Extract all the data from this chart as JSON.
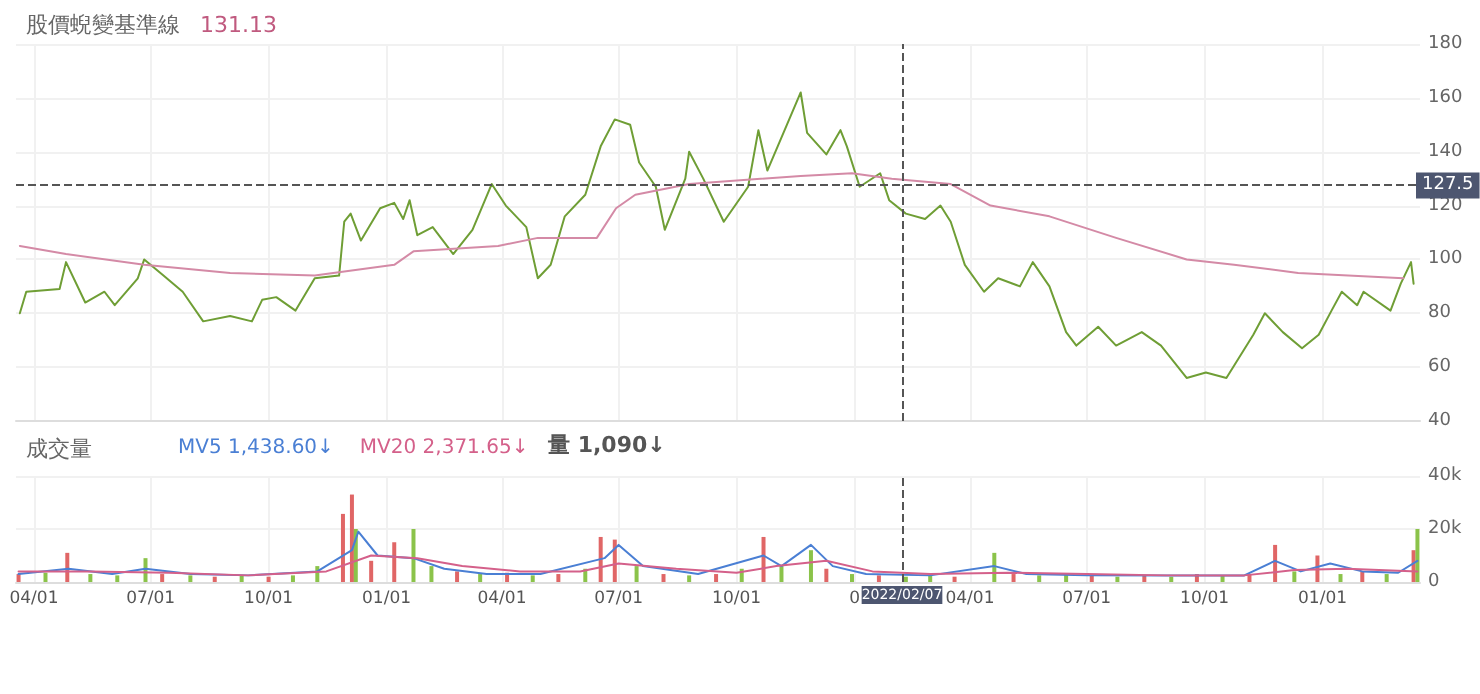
{
  "chart_data": [
    {
      "type": "line",
      "title": "股價蜺變基準線",
      "subtitle": "131.13",
      "tick_labels": "y",
      "grid": true,
      "marker": "none",
      "xlim": [
        "2020-03-18",
        "2023-03-18"
      ],
      "xticks": [
        {
          "value": "2020-04-01",
          "label": null
        },
        {
          "value": "2020-07-01",
          "label": null
        },
        {
          "value": "2020-10-01",
          "label": null
        },
        {
          "value": "2021-01-01",
          "label": null
        },
        {
          "value": "2021-04-01",
          "label": null
        },
        {
          "value": "2021-07-01",
          "label": null
        },
        {
          "value": "2021-10-01",
          "label": null
        },
        {
          "value": "2022-01-01",
          "label": null
        },
        {
          "value": "2022-04-01",
          "label": null
        },
        {
          "value": "2022-07-01",
          "label": null
        },
        {
          "value": "2022-10-01",
          "label": null
        },
        {
          "value": "2023-01-01",
          "label": null
        }
      ],
      "ylim": [
        40,
        180
      ],
      "yticks": [
        40,
        60,
        80,
        100,
        120,
        140,
        160,
        180
      ],
      "series": [
        {
          "color": "#6f9e35",
          "x": [
            "2020-03-21",
            "2020-03-26",
            "2020-04-21",
            "2020-04-26",
            "2020-05-11",
            "2020-05-26",
            "2020-06-03",
            "2020-06-21",
            "2020-06-26",
            "2020-07-11",
            "2020-07-26",
            "2020-08-11",
            "2020-09-01",
            "2020-09-18",
            "2020-09-26",
            "2020-10-07",
            "2020-10-22",
            "2020-11-06",
            "2020-11-25",
            "2020-11-29",
            "2020-12-04",
            "2020-12-12",
            "2020-12-27",
            "2021-01-07",
            "2021-01-14",
            "2021-01-19",
            "2021-01-25",
            "2021-02-06",
            "2021-02-22",
            "2021-03-09",
            "2021-03-24",
            "2021-04-04",
            "2021-04-20",
            "2021-04-29",
            "2021-05-09",
            "2021-05-20",
            "2021-06-05",
            "2021-06-17",
            "2021-06-28",
            "2021-07-10",
            "2021-07-17",
            "2021-07-30",
            "2021-08-06",
            "2021-08-22",
            "2021-08-25",
            "2021-09-05",
            "2021-09-21",
            "2021-10-10",
            "2021-10-18",
            "2021-10-25",
            "2021-11-20",
            "2021-11-25",
            "2021-12-10",
            "2021-12-21",
            "2021-12-26",
            "2022-01-05",
            "2022-01-21",
            "2022-01-28",
            "2022-02-10",
            "2022-02-25",
            "2022-03-09",
            "2022-03-17",
            "2022-03-28",
            "2022-04-12",
            "2022-04-23",
            "2022-05-10",
            "2022-05-20",
            "2022-06-02",
            "2022-06-15",
            "2022-06-23",
            "2022-07-10",
            "2022-07-24",
            "2022-08-13",
            "2022-08-28",
            "2022-09-17",
            "2022-10-02",
            "2022-10-18",
            "2022-11-08",
            "2022-11-17",
            "2022-12-01",
            "2022-12-16",
            "2022-12-29",
            "2023-01-08",
            "2023-01-16",
            "2023-01-28",
            "2023-02-02",
            "2023-02-23",
            "2023-03-03",
            "2023-03-11",
            "2023-03-13"
          ],
          "values": [
            80,
            88,
            89,
            99,
            84,
            88,
            83,
            93,
            100,
            94,
            88,
            77,
            79,
            77,
            85,
            86,
            81,
            93,
            94,
            114,
            117,
            107,
            119,
            121,
            115,
            122,
            109,
            112,
            102,
            111,
            128,
            120,
            112,
            93,
            98,
            116,
            124,
            142,
            152,
            150,
            136,
            127,
            111,
            130,
            140,
            130,
            114,
            127,
            148,
            133,
            162,
            147,
            139,
            148,
            142,
            127,
            132,
            122,
            117,
            115,
            120,
            114,
            98,
            88,
            93,
            90,
            99,
            90,
            73,
            68,
            75,
            68,
            73,
            68,
            56,
            58,
            56,
            72,
            80,
            73,
            67,
            72,
            81,
            88,
            83,
            88,
            81,
            91,
            99,
            91
          ]
        },
        {
          "color": "#d48aa6",
          "x": [
            "2020-03-21",
            "2020-04-26",
            "2020-06-26",
            "2020-09-01",
            "2020-11-06",
            "2021-01-07",
            "2021-01-22",
            "2021-03-29",
            "2021-04-29",
            "2021-06-14",
            "2021-06-29",
            "2021-07-14",
            "2021-08-25",
            "2021-11-20",
            "2021-12-30",
            "2022-01-30",
            "2022-03-17",
            "2022-04-17",
            "2022-06-02",
            "2022-07-24",
            "2022-09-17",
            "2022-10-24",
            "2022-12-13",
            "2023-03-05"
          ],
          "values": [
            105,
            102,
            98,
            95,
            94,
            98,
            103,
            105,
            108,
            108,
            119,
            124,
            128,
            131,
            132,
            130,
            128,
            120,
            116,
            108,
            100,
            98,
            95,
            93
          ]
        }
      ],
      "ref_lines": [
        {
          "axis": "y",
          "value": 127.5,
          "label": "127.5",
          "color": "#555555",
          "line_style": "dashed"
        },
        {
          "axis": "x",
          "value": "2022-02-07",
          "label": null,
          "color": "#555555",
          "line_style": "dashed"
        }
      ]
    },
    {
      "type": "bar",
      "title": "成交量",
      "legend": "top left",
      "grid": true,
      "annotations": [
        "量 1,090↓"
      ],
      "xlim": [
        "2020-03-18",
        "2023-03-18"
      ],
      "xticks": [
        {
          "value": "2020-04-01",
          "label": "04/01"
        },
        {
          "value": "2020-07-01",
          "label": "07/01"
        },
        {
          "value": "2020-10-01",
          "label": "10/01"
        },
        {
          "value": "2021-01-01",
          "label": "01/01"
        },
        {
          "value": "2021-04-01",
          "label": "04/01"
        },
        {
          "value": "2021-07-01",
          "label": "07/01"
        },
        {
          "value": "2021-10-01",
          "label": "10/01"
        },
        {
          "value": "2022-01-01",
          "label": "0"
        },
        {
          "value": "2022-04-01",
          "label": "04/01"
        },
        {
          "value": "2022-07-01",
          "label": "07/01"
        },
        {
          "value": "2022-10-01",
          "label": "10/01"
        },
        {
          "value": "2023-01-01",
          "label": "01/01"
        }
      ],
      "ylim": [
        0,
        40000
      ],
      "yticks": [
        0,
        {
          "value": 20000,
          "label": "20k"
        },
        {
          "value": 40000,
          "label": "40k"
        }
      ],
      "series": [
        {
          "x": [
            "2020-03-20",
            "2020-04-10",
            "2020-04-27",
            "2020-05-15",
            "2020-06-05",
            "2020-06-27",
            "2020-07-10",
            "2020-08-01",
            "2020-08-20",
            "2020-09-10",
            "2020-10-01",
            "2020-10-20",
            "2020-11-08",
            "2020-11-28",
            "2020-12-05",
            "2020-12-08",
            "2020-12-20",
            "2021-01-07",
            "2021-01-22",
            "2021-02-05",
            "2021-02-25",
            "2021-03-15",
            "2021-04-05",
            "2021-04-25",
            "2021-05-15",
            "2021-06-05",
            "2021-06-17",
            "2021-06-28",
            "2021-07-15",
            "2021-08-05",
            "2021-08-25",
            "2021-09-15",
            "2021-10-05",
            "2021-10-22",
            "2021-11-05",
            "2021-11-28",
            "2021-12-10",
            "2021-12-30",
            "2022-01-20",
            "2022-02-10",
            "2022-03-01",
            "2022-03-20",
            "2022-04-20",
            "2022-05-05",
            "2022-05-25",
            "2022-06-15",
            "2022-07-05",
            "2022-07-25",
            "2022-08-15",
            "2022-09-05",
            "2022-09-25",
            "2022-10-15",
            "2022-11-05",
            "2022-11-25",
            "2022-12-10",
            "2022-12-28",
            "2023-01-15",
            "2023-02-01",
            "2023-02-20",
            "2023-03-13",
            "2023-03-16"
          ],
          "values": [
            3000,
            3500,
            11000,
            3000,
            2500,
            9000,
            3000,
            2500,
            2000,
            2500,
            2000,
            2500,
            6000,
            25700,
            33000,
            20000,
            8000,
            15000,
            20000,
            6000,
            4000,
            3000,
            3500,
            2500,
            3000,
            5000,
            17000,
            16000,
            6000,
            3000,
            2500,
            3000,
            5000,
            17000,
            6000,
            12000,
            5000,
            3000,
            2500,
            2000,
            2500,
            2000,
            11000,
            3000,
            2500,
            3000,
            2500,
            2000,
            2500,
            2000,
            3000,
            2500,
            3000,
            14000,
            4000,
            10000,
            3000,
            4000,
            3000,
            12000,
            20000
          ],
          "colors": [
            "#e06666",
            "#8bc34a",
            "#e06666",
            "#8bc34a",
            "#8bc34a",
            "#8bc34a",
            "#e06666",
            "#8bc34a",
            "#e06666",
            "#8bc34a",
            "#e06666",
            "#8bc34a",
            "#8bc34a",
            "#e06666",
            "#e06666",
            "#8bc34a",
            "#e06666",
            "#e06666",
            "#8bc34a",
            "#8bc34a",
            "#e06666",
            "#8bc34a",
            "#e06666",
            "#8bc34a",
            "#e06666",
            "#8bc34a",
            "#e06666",
            "#e06666",
            "#8bc34a",
            "#e06666",
            "#8bc34a",
            "#e06666",
            "#8bc34a",
            "#e06666",
            "#8bc34a",
            "#8bc34a",
            "#e06666",
            "#8bc34a",
            "#e06666",
            "#8bc34a",
            "#8bc34a",
            "#e06666",
            "#8bc34a",
            "#e06666",
            "#8bc34a",
            "#8bc34a",
            "#e06666",
            "#8bc34a",
            "#e06666",
            "#8bc34a",
            "#e06666",
            "#8bc34a",
            "#e06666",
            "#e06666",
            "#8bc34a",
            "#e06666",
            "#8bc34a",
            "#e06666",
            "#8bc34a",
            "#e06666",
            "#8bc34a"
          ]
        },
        {
          "type": "line",
          "name": "MV5 1,438.60↓",
          "color": "#4a7fd4",
          "x": [
            "2020-03-20",
            "2020-04-28",
            "2020-06-01",
            "2020-06-27",
            "2020-08-01",
            "2020-09-15",
            "2020-11-08",
            "2020-12-05",
            "2020-12-10",
            "2020-12-25",
            "2021-01-22",
            "2021-02-15",
            "2021-03-20",
            "2021-05-01",
            "2021-06-20",
            "2021-07-01",
            "2021-07-20",
            "2021-09-01",
            "2021-10-22",
            "2021-11-05",
            "2021-11-28",
            "2021-12-15",
            "2022-01-10",
            "2022-03-01",
            "2022-04-20",
            "2022-05-15",
            "2022-07-01",
            "2022-09-01",
            "2022-11-01",
            "2022-11-25",
            "2022-12-15",
            "2023-01-07",
            "2023-02-01",
            "2023-03-01",
            "2023-03-16"
          ],
          "values": [
            3000,
            5000,
            3000,
            5000,
            3000,
            2500,
            4000,
            12000,
            19000,
            10000,
            9000,
            5000,
            3000,
            3000,
            9000,
            14000,
            6000,
            3000,
            10000,
            6000,
            14000,
            6000,
            3000,
            2500,
            6000,
            3000,
            2500,
            2500,
            2500,
            8000,
            4000,
            7000,
            4000,
            3500,
            8000
          ]
        },
        {
          "type": "line",
          "name": "MV20 2,371.65↓",
          "color": "#d4608a",
          "x": [
            "2020-03-20",
            "2020-05-15",
            "2020-07-15",
            "2020-09-15",
            "2020-11-15",
            "2020-12-20",
            "2021-01-25",
            "2021-03-01",
            "2021-04-15",
            "2021-06-01",
            "2021-07-01",
            "2021-08-15",
            "2021-10-01",
            "2021-11-01",
            "2021-12-10",
            "2022-01-15",
            "2022-03-01",
            "2022-05-01",
            "2022-07-01",
            "2022-09-01",
            "2022-11-01",
            "2022-12-10",
            "2023-01-20",
            "2023-03-16"
          ],
          "values": [
            4000,
            4000,
            3500,
            2500,
            4000,
            10000,
            9000,
            6000,
            4000,
            4000,
            7000,
            5000,
            3500,
            6000,
            8000,
            4000,
            3000,
            3500,
            3000,
            2500,
            2500,
            4500,
            5000,
            4000
          ]
        }
      ],
      "ref_lines": [
        {
          "axis": "x",
          "value": "2022-02-07",
          "label": "2022/02/07",
          "color": "#555555",
          "line_style": "dashed"
        }
      ]
    }
  ]
}
